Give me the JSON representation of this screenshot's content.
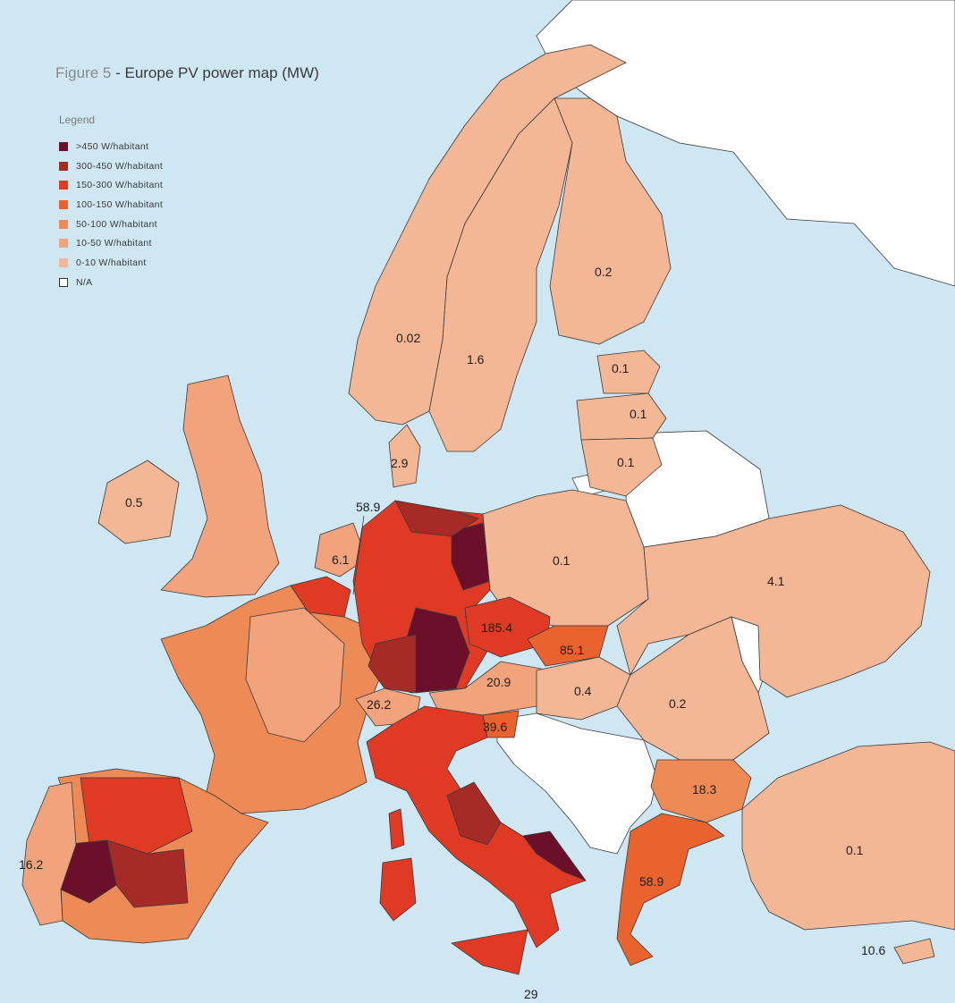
{
  "title": {
    "figure": "Figure 5",
    "text": " - Europe PV power map (MW)"
  },
  "legend": {
    "title": "Legend",
    "items": [
      {
        "label": ">450 W/habitant",
        "color": "#6b0f2a"
      },
      {
        "label": "300-450 W/habitant",
        "color": "#a62a26"
      },
      {
        "label": "150-300 W/habitant",
        "color": "#e03a24"
      },
      {
        "label": "100-150 W/habitant",
        "color": "#e8632e"
      },
      {
        "label": "50-100 W/habitant",
        "color": "#ee8a56"
      },
      {
        "label": "10-50 W/habitant",
        "color": "#f2a37c"
      },
      {
        "label": "0-10 W/habitant",
        "color": "#f3b796"
      },
      {
        "label": "N/A",
        "color": "#ffffff"
      }
    ]
  },
  "colors": {
    "sea": "#cfe7f3",
    "border": "#3a3a3a"
  },
  "labels": {
    "norway": "0.02",
    "sweden": "1.6",
    "finland": "0.2",
    "estonia": "0.1",
    "latvia": "0.1",
    "lithuania": "0.1",
    "denmark": "2.9",
    "ireland": "0.5",
    "netherlands": "6.1",
    "luxembourg": "58.9",
    "poland": "0.1",
    "ukraine": "4.1",
    "czech": "185.4",
    "slovakia": "85.1",
    "austria": "20.9",
    "hungary": "0.4",
    "romania": "0.2",
    "switzerland": "26.2",
    "slovenia": "39.6",
    "bulgaria": "18.3",
    "portugal": "16.2",
    "greece": "58.9",
    "turkey": "0.1",
    "cyprus": "10.6",
    "malta": "29"
  }
}
